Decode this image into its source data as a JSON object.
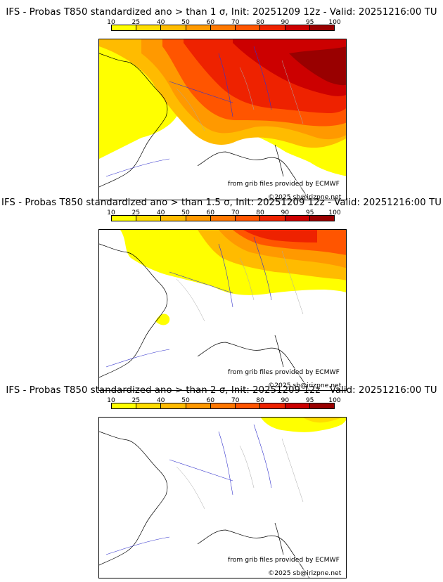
{
  "colorbar": {
    "ticks": [
      "10",
      "25",
      "40",
      "50",
      "60",
      "70",
      "80",
      "90",
      "95",
      "100"
    ],
    "colors": [
      "#ffff00",
      "#ffdd00",
      "#ffbb00",
      "#ff9900",
      "#ff7700",
      "#ff5500",
      "#ee2200",
      "#cc0000",
      "#990000"
    ]
  },
  "panels": [
    {
      "title": "IFS - Probas T850  standardized ano > than 1 σ, Init: 20251209 12z - Valid: 20251216:00 TU",
      "threshold": "1 σ",
      "credit_source": "from grib files provided by ECMWF",
      "credit_copyright": "©2025 sb@irizpne.net"
    },
    {
      "title": "IFS - Probas T850  standardized ano > than 1.5 σ, Init: 20251209 12z - Valid: 20251216:00 TU",
      "threshold": "1.5 σ",
      "credit_source": "from grib files provided by ECMWF",
      "credit_copyright": "©2025 sb@irizpne.net"
    },
    {
      "title": "IFS - Probas T850  standardized ano > than 2 σ, Init: 20251209 12z - Valid: 20251216:00 TU",
      "threshold": "2 σ",
      "credit_source": "from grib files provided by ECMWF",
      "credit_copyright": "©2025 sb@irizpne.net"
    }
  ]
}
